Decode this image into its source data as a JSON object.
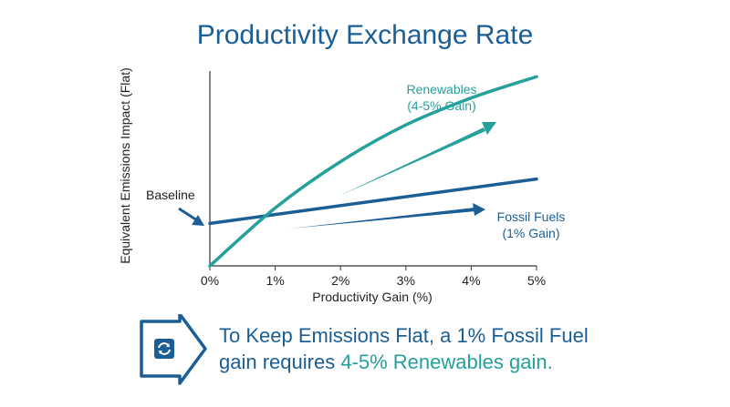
{
  "colors": {
    "title": "#1b5e96",
    "renewables": "#25a09c",
    "fossil": "#1b5e96",
    "axis": "#333333",
    "text": "#222222"
  },
  "chart_data": {
    "type": "line",
    "title": "Productivity Exchange Rate",
    "xlabel": "Productivity Gain (%)",
    "ylabel": "Equivalent Emissions Impact (Flat)",
    "x_ticks": [
      "0%",
      "1%",
      "2%",
      "3%",
      "4%",
      "5%"
    ],
    "xlim": [
      0,
      5
    ],
    "ylim": [
      0,
      1
    ],
    "grid": false,
    "series": [
      {
        "name": "Fossil Fuels",
        "label_lines": [
          "Fossil Fuels",
          "(1% Gain)"
        ],
        "color": "#1b5e96",
        "x": [
          0,
          5
        ],
        "y": [
          0.22,
          0.45
        ]
      },
      {
        "name": "Renewables",
        "label_lines": [
          "Renewables",
          "(4-5% Gain)"
        ],
        "color": "#25a09c",
        "x": [
          0,
          1,
          2,
          3,
          4,
          5
        ],
        "y": [
          0.0,
          0.3,
          0.54,
          0.73,
          0.87,
          0.98
        ]
      }
    ],
    "annotations": {
      "baseline": "Baseline"
    }
  },
  "callout": {
    "icon": "refresh-arrows-icon",
    "line1": "To Keep Emissions Flat, a 1% Fossil Fuel",
    "line2_prefix": "gain requires ",
    "line2_highlight": "4-5% Renewables gain."
  }
}
